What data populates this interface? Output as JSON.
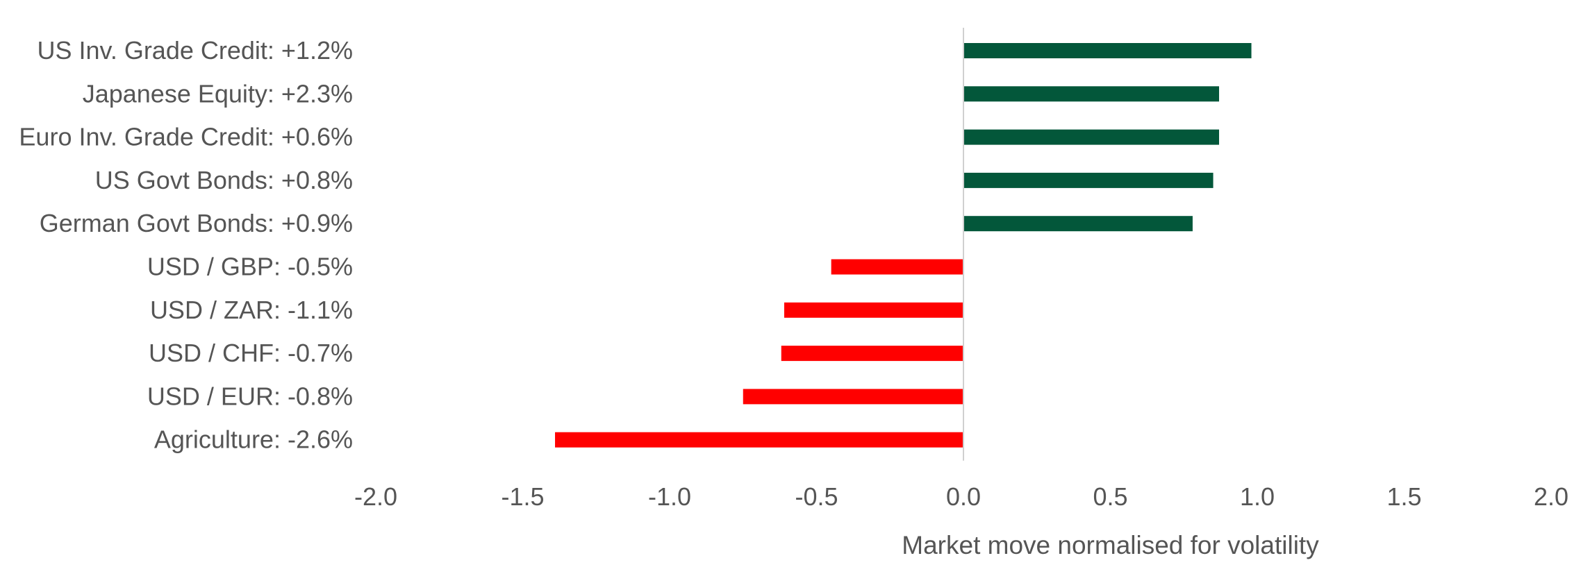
{
  "chart_data": {
    "type": "bar",
    "orientation": "horizontal",
    "title": "",
    "xlabel": "Market move normalised for volatility",
    "ylabel": "",
    "xlim": [
      -2.0,
      2.0
    ],
    "x_ticks": [
      "-2.0",
      "-1.5",
      "-1.0",
      "-0.5",
      "0.0",
      "0.5",
      "1.0",
      "1.5",
      "2.0"
    ],
    "x_tick_values": [
      -2.0,
      -1.5,
      -1.0,
      -0.5,
      0.0,
      0.5,
      1.0,
      1.5,
      2.0
    ],
    "grid": false,
    "legend": "none",
    "categories": [
      "US Inv. Grade Credit: +1.2%",
      "Japanese Equity: +2.3%",
      "Euro Inv. Grade Credit: +0.6%",
      "US Govt Bonds: +0.8%",
      "German Govt Bonds: +0.9%",
      "USD / GBP: -0.5%",
      "USD / ZAR: -1.1%",
      "USD / CHF: -0.7%",
      "USD / EUR: -0.8%",
      "Agriculture: -2.6%"
    ],
    "values": [
      0.98,
      0.87,
      0.87,
      0.85,
      0.78,
      -0.45,
      -0.61,
      -0.62,
      -0.75,
      -1.39
    ],
    "colors": {
      "positive": "#03573a",
      "negative": "#ff0000",
      "zero_line": "#d0d0d0"
    }
  }
}
